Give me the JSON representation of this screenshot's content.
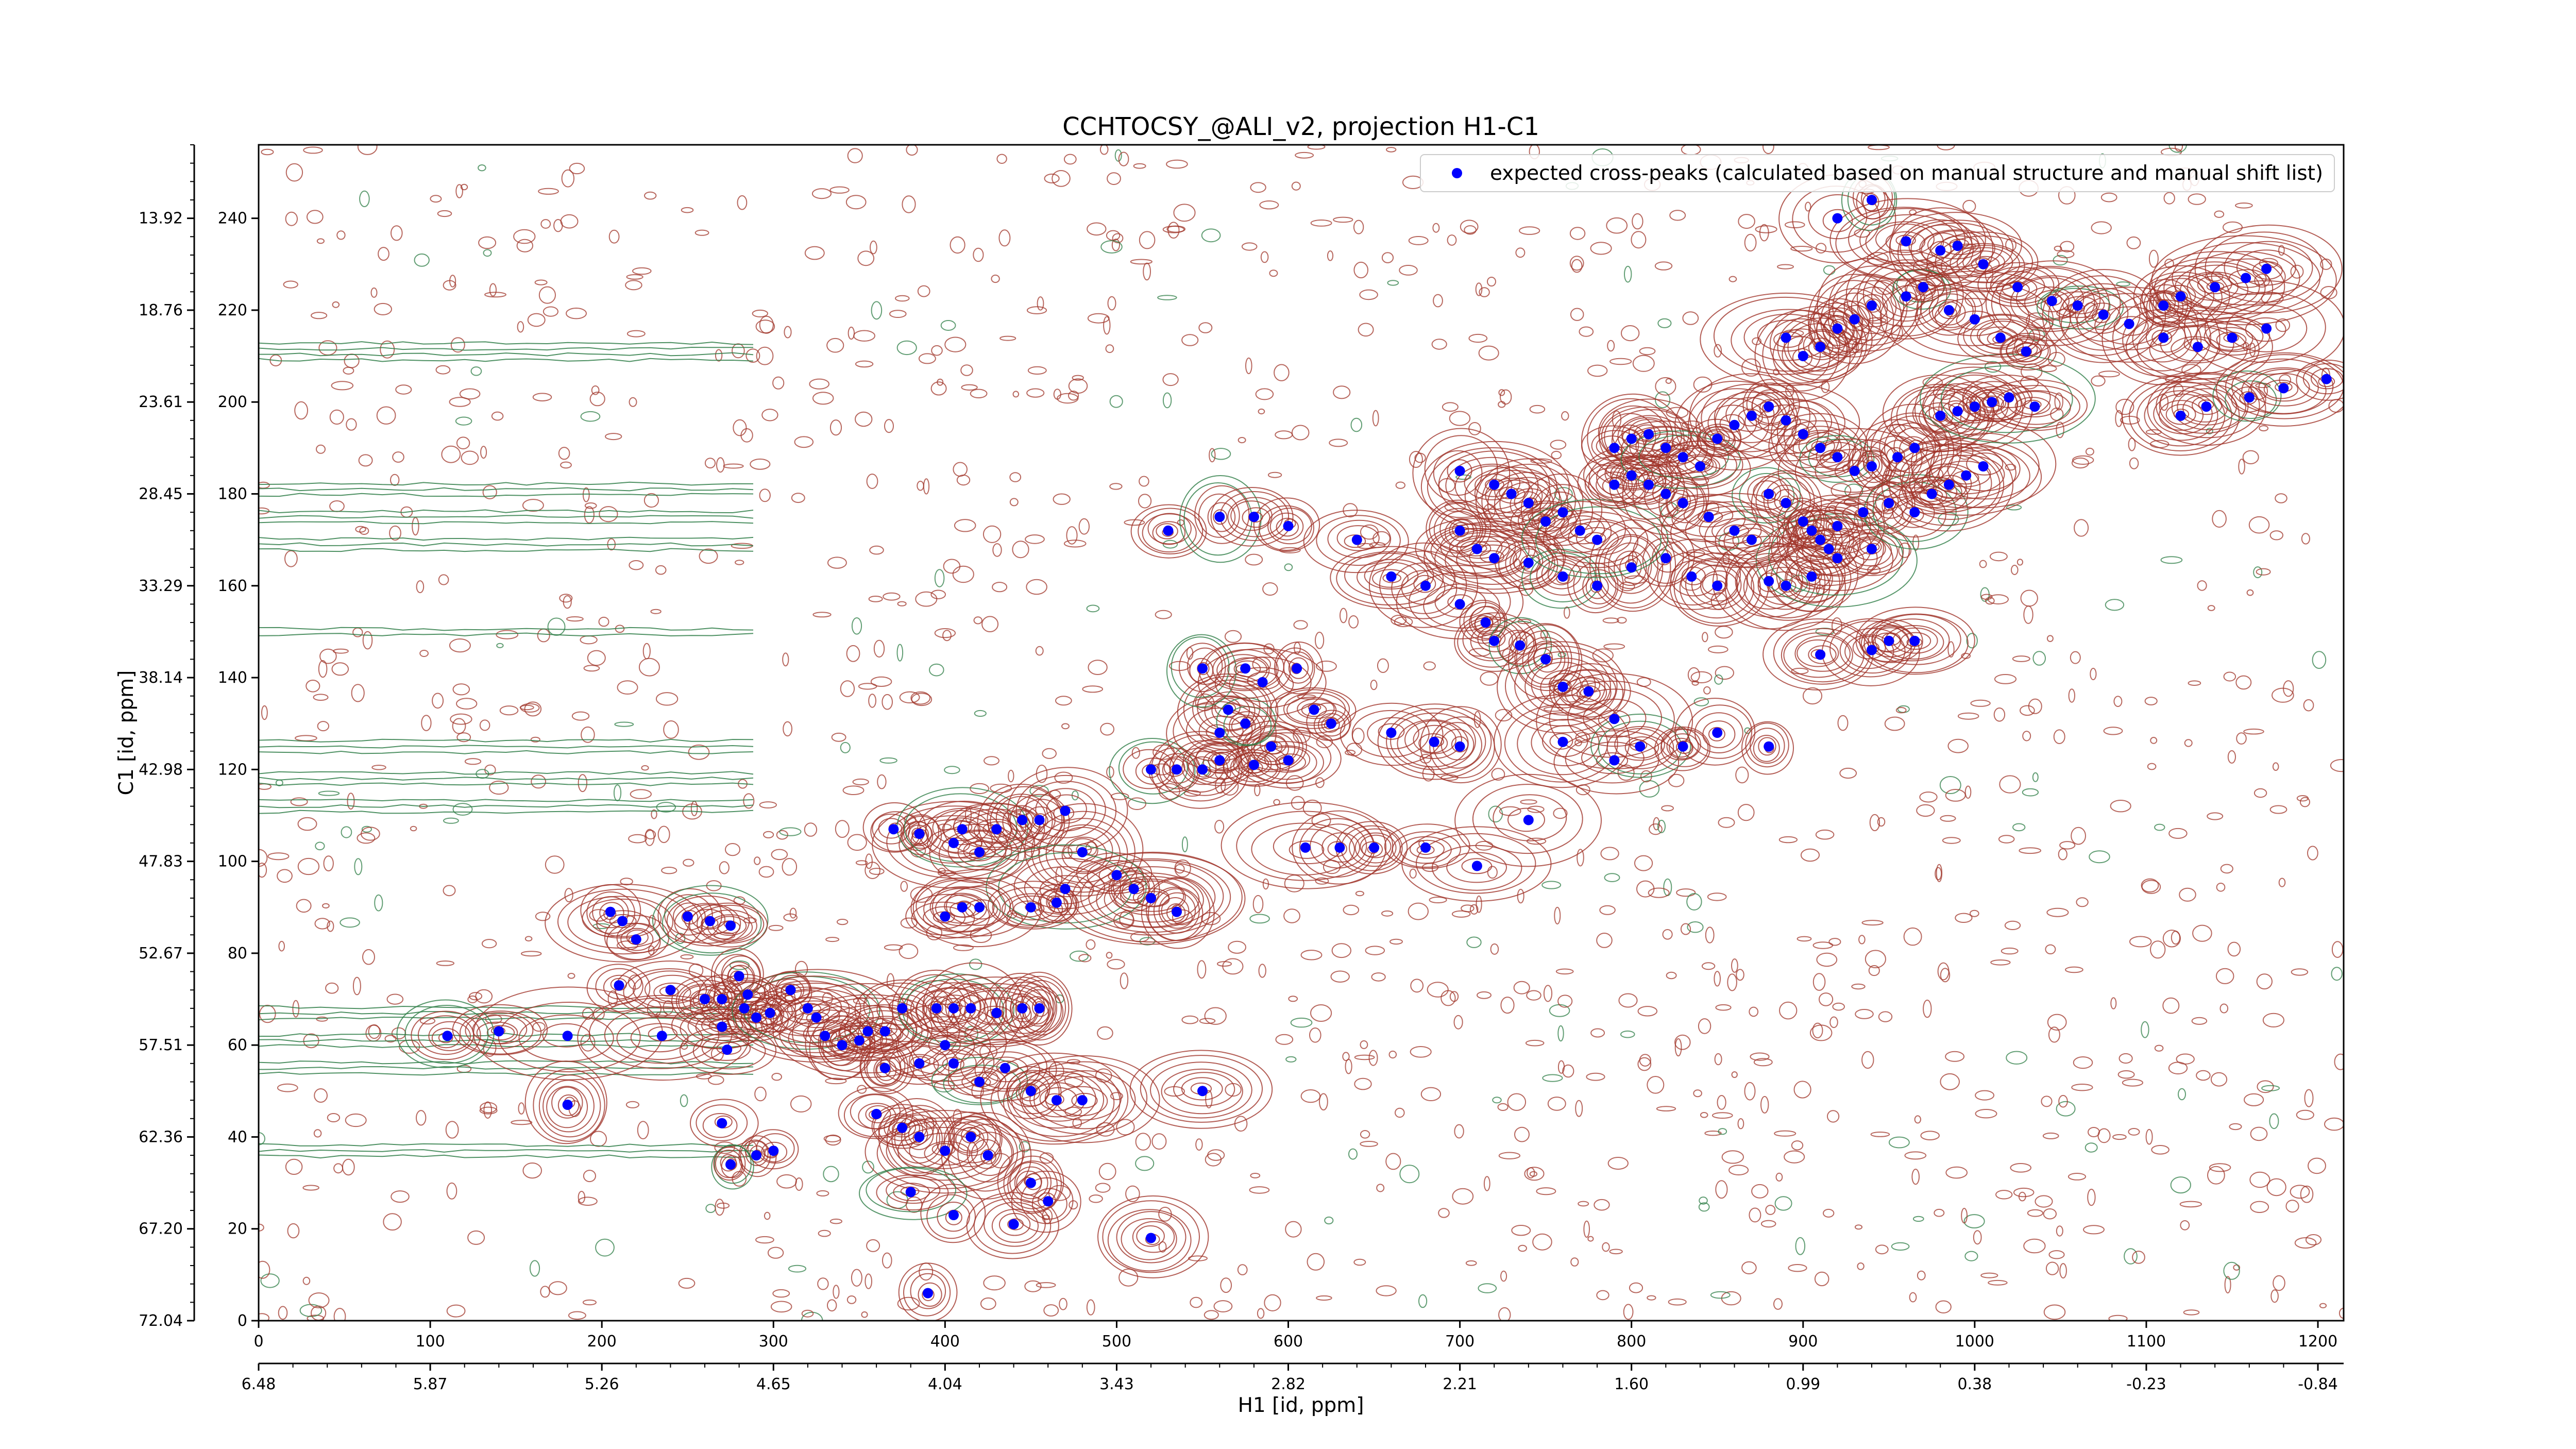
{
  "chart_data": {
    "type": "scatter",
    "title": "CCHTOCSY_@ALI_v2, projection H1-C1",
    "xlabel": "H1 [id, ppm]",
    "ylabel": "C1 [id, ppm]",
    "x_index_ticks": [
      "0",
      "100",
      "200",
      "300",
      "400",
      "500",
      "600",
      "700",
      "800",
      "900",
      "1000",
      "1100",
      "1200"
    ],
    "x_ppm_ticks": [
      "6.48",
      "5.87",
      "5.26",
      "4.65",
      "4.04",
      "3.43",
      "2.82",
      "2.21",
      "1.60",
      "0.99",
      "0.38",
      "-0.23",
      "-0.84"
    ],
    "y_index_ticks": [
      "0",
      "20",
      "40",
      "60",
      "80",
      "100",
      "120",
      "140",
      "160",
      "180",
      "200",
      "220",
      "240"
    ],
    "y_ppm_ticks": [
      "72.04",
      "67.20",
      "62.36",
      "57.51",
      "52.67",
      "47.83",
      "42.98",
      "38.14",
      "33.29",
      "28.45",
      "23.61",
      "18.76",
      "13.92"
    ],
    "xlim": [
      0,
      1215
    ],
    "ylim": [
      0,
      256
    ],
    "legend": {
      "position": "top-right",
      "label": "expected cross-peaks (calculated based on manual structure and manual shift list)",
      "marker_color": "#0000ff"
    },
    "colors": {
      "positive_contour": "#a0352a",
      "negative_contour": "#2e7d46",
      "peak_marker": "#0000ff"
    },
    "series": [
      {
        "name": "expected cross-peaks (calculated based on manual structure and manual shift list)",
        "points": [
          [
            205,
            89
          ],
          [
            212,
            87
          ],
          [
            220,
            83
          ],
          [
            250,
            88
          ],
          [
            263,
            87
          ],
          [
            275,
            86
          ],
          [
            210,
            73
          ],
          [
            240,
            72
          ],
          [
            260,
            70
          ],
          [
            270,
            70
          ],
          [
            280,
            75
          ],
          [
            283,
            68
          ],
          [
            140,
            63
          ],
          [
            110,
            62
          ],
          [
            180,
            62
          ],
          [
            235,
            62
          ],
          [
            270,
            64
          ],
          [
            273,
            59
          ],
          [
            285,
            71
          ],
          [
            290,
            66
          ],
          [
            298,
            67
          ],
          [
            310,
            72
          ],
          [
            320,
            68
          ],
          [
            325,
            66
          ],
          [
            330,
            62
          ],
          [
            340,
            60
          ],
          [
            350,
            61
          ],
          [
            355,
            63
          ],
          [
            365,
            63
          ],
          [
            375,
            68
          ],
          [
            395,
            68
          ],
          [
            405,
            68
          ],
          [
            415,
            68
          ],
          [
            430,
            67
          ],
          [
            445,
            68
          ],
          [
            455,
            68
          ],
          [
            365,
            55
          ],
          [
            385,
            56
          ],
          [
            400,
            60
          ],
          [
            405,
            56
          ],
          [
            420,
            52
          ],
          [
            435,
            55
          ],
          [
            450,
            50
          ],
          [
            465,
            48
          ],
          [
            480,
            48
          ],
          [
            180,
            47
          ],
          [
            270,
            43
          ],
          [
            300,
            37
          ],
          [
            290,
            36
          ],
          [
            275,
            34
          ],
          [
            360,
            45
          ],
          [
            375,
            42
          ],
          [
            385,
            40
          ],
          [
            400,
            37
          ],
          [
            415,
            40
          ],
          [
            425,
            36
          ],
          [
            450,
            30
          ],
          [
            460,
            26
          ],
          [
            380,
            28
          ],
          [
            405,
            23
          ],
          [
            440,
            21
          ],
          [
            520,
            18
          ],
          [
            390,
            6
          ],
          [
            550,
            50
          ],
          [
            370,
            107
          ],
          [
            385,
            106
          ],
          [
            405,
            104
          ],
          [
            410,
            107
          ],
          [
            420,
            102
          ],
          [
            430,
            107
          ],
          [
            445,
            109
          ],
          [
            455,
            109
          ],
          [
            470,
            111
          ],
          [
            480,
            102
          ],
          [
            500,
            97
          ],
          [
            510,
            94
          ],
          [
            470,
            94
          ],
          [
            465,
            91
          ],
          [
            450,
            90
          ],
          [
            420,
            90
          ],
          [
            410,
            90
          ],
          [
            400,
            88
          ],
          [
            520,
            92
          ],
          [
            535,
            89
          ],
          [
            520,
            92
          ],
          [
            520,
            120
          ],
          [
            535,
            120
          ],
          [
            550,
            120
          ],
          [
            560,
            122
          ],
          [
            580,
            121
          ],
          [
            590,
            125
          ],
          [
            600,
            122
          ],
          [
            560,
            128
          ],
          [
            565,
            133
          ],
          [
            575,
            130
          ],
          [
            585,
            139
          ],
          [
            615,
            133
          ],
          [
            610,
            103
          ],
          [
            630,
            103
          ],
          [
            650,
            103
          ],
          [
            680,
            103
          ],
          [
            710,
            99
          ],
          [
            740,
            109
          ],
          [
            550,
            142
          ],
          [
            575,
            142
          ],
          [
            605,
            142
          ],
          [
            625,
            130
          ],
          [
            660,
            128
          ],
          [
            685,
            126
          ],
          [
            700,
            125
          ],
          [
            760,
            126
          ],
          [
            790,
            122
          ],
          [
            805,
            125
          ],
          [
            830,
            125
          ],
          [
            850,
            128
          ],
          [
            880,
            125
          ],
          [
            910,
            145
          ],
          [
            940,
            146
          ],
          [
            950,
            148
          ],
          [
            965,
            148
          ],
          [
            530,
            172
          ],
          [
            560,
            175
          ],
          [
            580,
            175
          ],
          [
            600,
            173
          ],
          [
            640,
            170
          ],
          [
            660,
            162
          ],
          [
            680,
            160
          ],
          [
            700,
            156
          ],
          [
            715,
            152
          ],
          [
            720,
            148
          ],
          [
            735,
            147
          ],
          [
            750,
            144
          ],
          [
            760,
            138
          ],
          [
            775,
            137
          ],
          [
            790,
            131
          ],
          [
            700,
            172
          ],
          [
            710,
            168
          ],
          [
            720,
            166
          ],
          [
            740,
            165
          ],
          [
            760,
            162
          ],
          [
            780,
            160
          ],
          [
            800,
            164
          ],
          [
            820,
            166
          ],
          [
            835,
            162
          ],
          [
            850,
            160
          ],
          [
            880,
            161
          ],
          [
            890,
            160
          ],
          [
            905,
            162
          ],
          [
            920,
            166
          ],
          [
            940,
            168
          ],
          [
            700,
            185
          ],
          [
            720,
            182
          ],
          [
            730,
            180
          ],
          [
            740,
            178
          ],
          [
            750,
            174
          ],
          [
            760,
            176
          ],
          [
            770,
            172
          ],
          [
            780,
            170
          ],
          [
            790,
            182
          ],
          [
            800,
            184
          ],
          [
            810,
            182
          ],
          [
            820,
            180
          ],
          [
            830,
            178
          ],
          [
            845,
            175
          ],
          [
            860,
            172
          ],
          [
            870,
            170
          ],
          [
            880,
            180
          ],
          [
            890,
            178
          ],
          [
            900,
            174
          ],
          [
            905,
            172
          ],
          [
            910,
            170
          ],
          [
            915,
            168
          ],
          [
            920,
            173
          ],
          [
            935,
            176
          ],
          [
            950,
            178
          ],
          [
            965,
            176
          ],
          [
            975,
            180
          ],
          [
            985,
            182
          ],
          [
            995,
            184
          ],
          [
            1005,
            186
          ],
          [
            790,
            190
          ],
          [
            800,
            192
          ],
          [
            810,
            193
          ],
          [
            820,
            190
          ],
          [
            830,
            188
          ],
          [
            840,
            186
          ],
          [
            850,
            192
          ],
          [
            860,
            195
          ],
          [
            870,
            197
          ],
          [
            880,
            199
          ],
          [
            890,
            196
          ],
          [
            900,
            193
          ],
          [
            910,
            190
          ],
          [
            920,
            188
          ],
          [
            930,
            185
          ],
          [
            940,
            186
          ],
          [
            955,
            188
          ],
          [
            965,
            190
          ],
          [
            980,
            197
          ],
          [
            990,
            198
          ],
          [
            1000,
            199
          ],
          [
            1010,
            200
          ],
          [
            1020,
            201
          ],
          [
            1035,
            199
          ],
          [
            890,
            214
          ],
          [
            900,
            210
          ],
          [
            910,
            212
          ],
          [
            920,
            216
          ],
          [
            930,
            218
          ],
          [
            940,
            221
          ],
          [
            960,
            223
          ],
          [
            970,
            225
          ],
          [
            985,
            220
          ],
          [
            1000,
            218
          ],
          [
            1015,
            214
          ],
          [
            1030,
            211
          ],
          [
            990,
            234
          ],
          [
            1005,
            230
          ],
          [
            1025,
            225
          ],
          [
            1045,
            222
          ],
          [
            1060,
            221
          ],
          [
            1075,
            219
          ],
          [
            1090,
            217
          ],
          [
            1110,
            214
          ],
          [
            1130,
            212
          ],
          [
            1150,
            214
          ],
          [
            1170,
            216
          ],
          [
            1120,
            197
          ],
          [
            1135,
            199
          ],
          [
            1160,
            201
          ],
          [
            1180,
            203
          ],
          [
            1205,
            205
          ],
          [
            1110,
            221
          ],
          [
            1120,
            223
          ],
          [
            1140,
            225
          ],
          [
            1158,
            227
          ],
          [
            1170,
            229
          ],
          [
            920,
            240
          ],
          [
            940,
            244
          ],
          [
            960,
            235
          ],
          [
            980,
            233
          ]
        ]
      }
    ]
  }
}
